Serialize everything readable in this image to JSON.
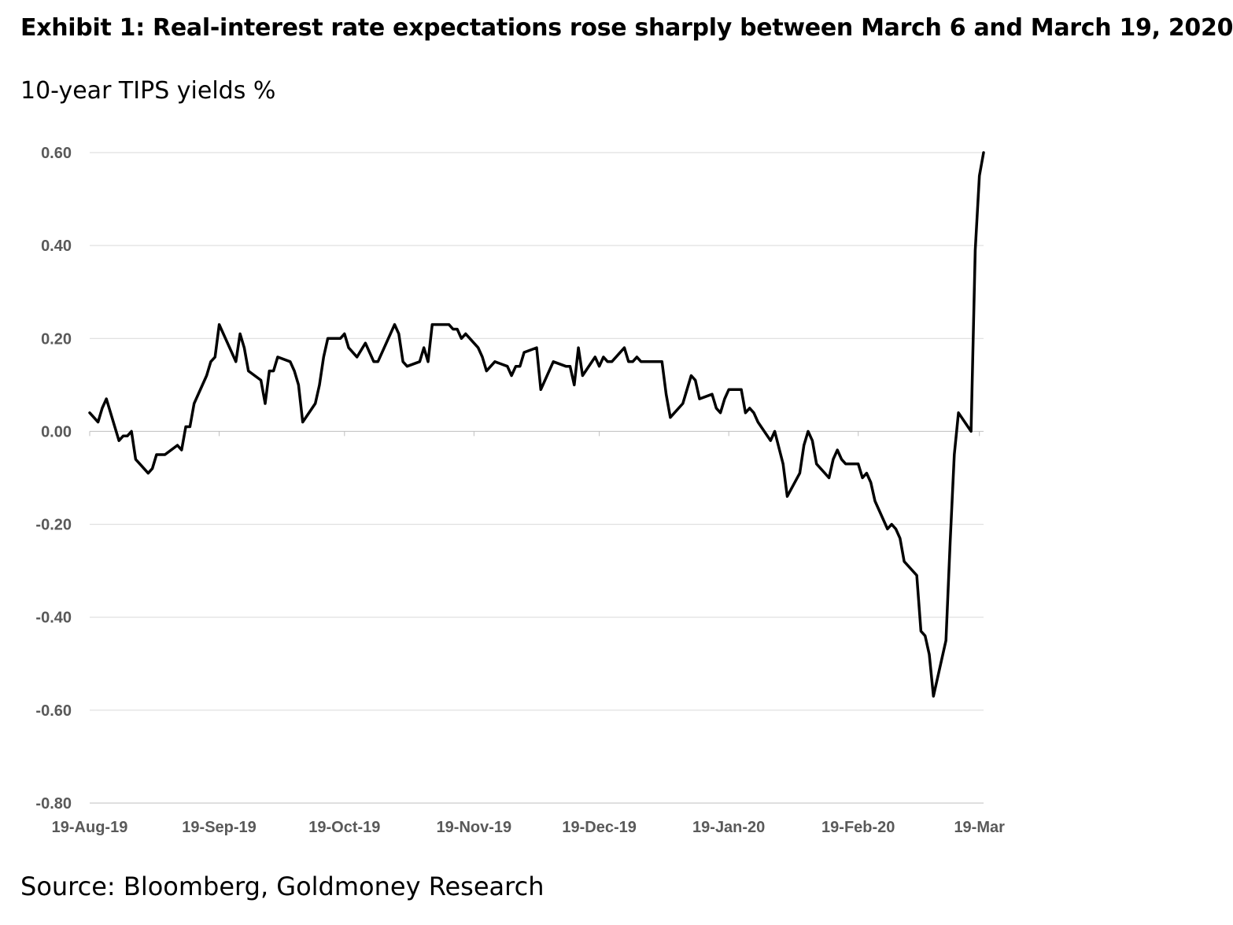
{
  "title": "Exhibit 1: Real-interest rate expectations rose sharply between March 6 and March 19, 2020",
  "source": "Source: Bloomberg, Goldmoney Research",
  "chart_data": {
    "type": "line",
    "title": "Exhibit 1: Real-interest rate expectations rose sharply between March 6 and March 19, 2020",
    "subtitle": "10-year TIPS yields %",
    "xlabel": "",
    "ylabel": "",
    "ylim": [
      -0.8,
      0.6
    ],
    "yticks": [
      "0.60",
      "0.40",
      "0.20",
      "0.00",
      "-0.20",
      "-0.40",
      "-0.60",
      "-0.80"
    ],
    "ytick_values": [
      0.6,
      0.4,
      0.2,
      0.0,
      -0.2,
      -0.4,
      -0.6,
      -0.8
    ],
    "xticks": [
      "19-Aug-19",
      "19-Sep-19",
      "19-Oct-19",
      "19-Nov-19",
      "19-Dec-19",
      "19-Jan-20",
      "19-Feb-20",
      "19-Mar"
    ],
    "xtick_dates": [
      "2019-08-19",
      "2019-09-19",
      "2019-10-19",
      "2019-11-19",
      "2019-12-19",
      "2020-01-19",
      "2020-02-19",
      "2020-03-19"
    ],
    "grid": true,
    "legend": "none",
    "line_color": "#000000",
    "series": [
      {
        "points": [
          [
            "2019-08-19",
            0.04
          ],
          [
            "2019-08-20",
            0.03
          ],
          [
            "2019-08-21",
            0.02
          ],
          [
            "2019-08-22",
            0.05
          ],
          [
            "2019-08-23",
            0.07
          ],
          [
            "2019-08-26",
            -0.02
          ],
          [
            "2019-08-27",
            -0.01
          ],
          [
            "2019-08-28",
            -0.01
          ],
          [
            "2019-08-29",
            0.0
          ],
          [
            "2019-08-30",
            -0.06
          ],
          [
            "2019-09-02",
            -0.09
          ],
          [
            "2019-09-03",
            -0.08
          ],
          [
            "2019-09-04",
            -0.05
          ],
          [
            "2019-09-05",
            -0.05
          ],
          [
            "2019-09-06",
            -0.05
          ],
          [
            "2019-09-09",
            -0.03
          ],
          [
            "2019-09-10",
            -0.04
          ],
          [
            "2019-09-11",
            0.01
          ],
          [
            "2019-09-12",
            0.01
          ],
          [
            "2019-09-13",
            0.06
          ],
          [
            "2019-09-16",
            0.12
          ],
          [
            "2019-09-17",
            0.15
          ],
          [
            "2019-09-18",
            0.16
          ],
          [
            "2019-09-19",
            0.23
          ],
          [
            "2019-09-23",
            0.15
          ],
          [
            "2019-09-24",
            0.21
          ],
          [
            "2019-09-25",
            0.18
          ],
          [
            "2019-09-26",
            0.13
          ],
          [
            "2019-09-29",
            0.11
          ],
          [
            "2019-09-30",
            0.06
          ],
          [
            "2019-10-01",
            0.13
          ],
          [
            "2019-10-02",
            0.13
          ],
          [
            "2019-10-03",
            0.16
          ],
          [
            "2019-10-06",
            0.15
          ],
          [
            "2019-10-07",
            0.13
          ],
          [
            "2019-10-08",
            0.1
          ],
          [
            "2019-10-09",
            0.02
          ],
          [
            "2019-10-12",
            0.06
          ],
          [
            "2019-10-13",
            0.1
          ],
          [
            "2019-10-14",
            0.16
          ],
          [
            "2019-10-15",
            0.2
          ],
          [
            "2019-10-18",
            0.2
          ],
          [
            "2019-10-19",
            0.21
          ],
          [
            "2019-10-20",
            0.18
          ],
          [
            "2019-10-22",
            0.16
          ],
          [
            "2019-10-24",
            0.19
          ],
          [
            "2019-10-25",
            0.17
          ],
          [
            "2019-10-26",
            0.15
          ],
          [
            "2019-10-27",
            0.15
          ],
          [
            "2019-10-31",
            0.23
          ],
          [
            "2019-11-01",
            0.21
          ],
          [
            "2019-11-02",
            0.15
          ],
          [
            "2019-11-03",
            0.14
          ],
          [
            "2019-11-06",
            0.15
          ],
          [
            "2019-11-07",
            0.18
          ],
          [
            "2019-11-08",
            0.15
          ],
          [
            "2019-11-09",
            0.23
          ],
          [
            "2019-11-13",
            0.23
          ],
          [
            "2019-11-14",
            0.22
          ],
          [
            "2019-11-15",
            0.22
          ],
          [
            "2019-11-16",
            0.2
          ],
          [
            "2019-11-17",
            0.21
          ],
          [
            "2019-11-19",
            0.19
          ],
          [
            "2019-11-20",
            0.18
          ],
          [
            "2019-11-21",
            0.16
          ],
          [
            "2019-11-22",
            0.13
          ],
          [
            "2019-11-24",
            0.15
          ],
          [
            "2019-11-27",
            0.14
          ],
          [
            "2019-11-28",
            0.12
          ],
          [
            "2019-11-29",
            0.14
          ],
          [
            "2019-11-30",
            0.14
          ],
          [
            "2019-12-01",
            0.17
          ],
          [
            "2019-12-04",
            0.18
          ],
          [
            "2019-12-05",
            0.09
          ],
          [
            "2019-12-08",
            0.15
          ],
          [
            "2019-12-11",
            0.14
          ],
          [
            "2019-12-12",
            0.14
          ],
          [
            "2019-12-13",
            0.1
          ],
          [
            "2019-12-14",
            0.18
          ],
          [
            "2019-12-15",
            0.12
          ],
          [
            "2019-12-18",
            0.16
          ],
          [
            "2019-12-19",
            0.14
          ],
          [
            "2019-12-20",
            0.16
          ],
          [
            "2019-12-21",
            0.15
          ],
          [
            "2019-12-22",
            0.15
          ],
          [
            "2019-12-25",
            0.18
          ],
          [
            "2019-12-26",
            0.15
          ],
          [
            "2019-12-27",
            0.15
          ],
          [
            "2019-12-28",
            0.16
          ],
          [
            "2019-12-29",
            0.15
          ],
          [
            "2020-01-03",
            0.15
          ],
          [
            "2020-01-04",
            0.08
          ],
          [
            "2020-01-05",
            0.03
          ],
          [
            "2020-01-08",
            0.06
          ],
          [
            "2020-01-10",
            0.12
          ],
          [
            "2020-01-11",
            0.11
          ],
          [
            "2020-01-12",
            0.07
          ],
          [
            "2020-01-15",
            0.08
          ],
          [
            "2020-01-16",
            0.05
          ],
          [
            "2020-01-17",
            0.04
          ],
          [
            "2020-01-18",
            0.07
          ],
          [
            "2020-01-19",
            0.09
          ],
          [
            "2020-01-22",
            0.09
          ],
          [
            "2020-01-23",
            0.04
          ],
          [
            "2020-01-24",
            0.05
          ],
          [
            "2020-01-25",
            0.04
          ],
          [
            "2020-01-26",
            0.02
          ],
          [
            "2020-01-29",
            -0.02
          ],
          [
            "2020-01-30",
            0.0
          ],
          [
            "2020-02-01",
            -0.07
          ],
          [
            "2020-02-02",
            -0.14
          ],
          [
            "2020-02-05",
            -0.09
          ],
          [
            "2020-02-06",
            -0.03
          ],
          [
            "2020-02-07",
            0.0
          ],
          [
            "2020-02-08",
            -0.02
          ],
          [
            "2020-02-09",
            -0.07
          ],
          [
            "2020-02-12",
            -0.1
          ],
          [
            "2020-02-13",
            -0.06
          ],
          [
            "2020-02-14",
            -0.04
          ],
          [
            "2020-02-15",
            -0.06
          ],
          [
            "2020-02-16",
            -0.07
          ],
          [
            "2020-02-19",
            -0.07
          ],
          [
            "2020-02-20",
            -0.1
          ],
          [
            "2020-02-21",
            -0.09
          ],
          [
            "2020-02-22",
            -0.11
          ],
          [
            "2020-02-23",
            -0.15
          ],
          [
            "2020-02-26",
            -0.21
          ],
          [
            "2020-02-27",
            -0.2
          ],
          [
            "2020-02-28",
            -0.21
          ],
          [
            "2020-02-29",
            -0.23
          ],
          [
            "2020-03-01",
            -0.28
          ],
          [
            "2020-03-04",
            -0.31
          ],
          [
            "2020-03-05",
            -0.43
          ],
          [
            "2020-03-06",
            -0.44
          ],
          [
            "2020-03-07",
            -0.48
          ],
          [
            "2020-03-08",
            -0.57
          ],
          [
            "2020-03-11",
            -0.45
          ],
          [
            "2020-03-12",
            -0.24
          ],
          [
            "2020-03-13",
            -0.05
          ],
          [
            "2020-03-14",
            0.04
          ],
          [
            "2020-03-17",
            0.0
          ],
          [
            "2020-03-18",
            0.39
          ],
          [
            "2020-03-19",
            0.55
          ],
          [
            "2020-03-20",
            0.6
          ]
        ]
      }
    ]
  }
}
